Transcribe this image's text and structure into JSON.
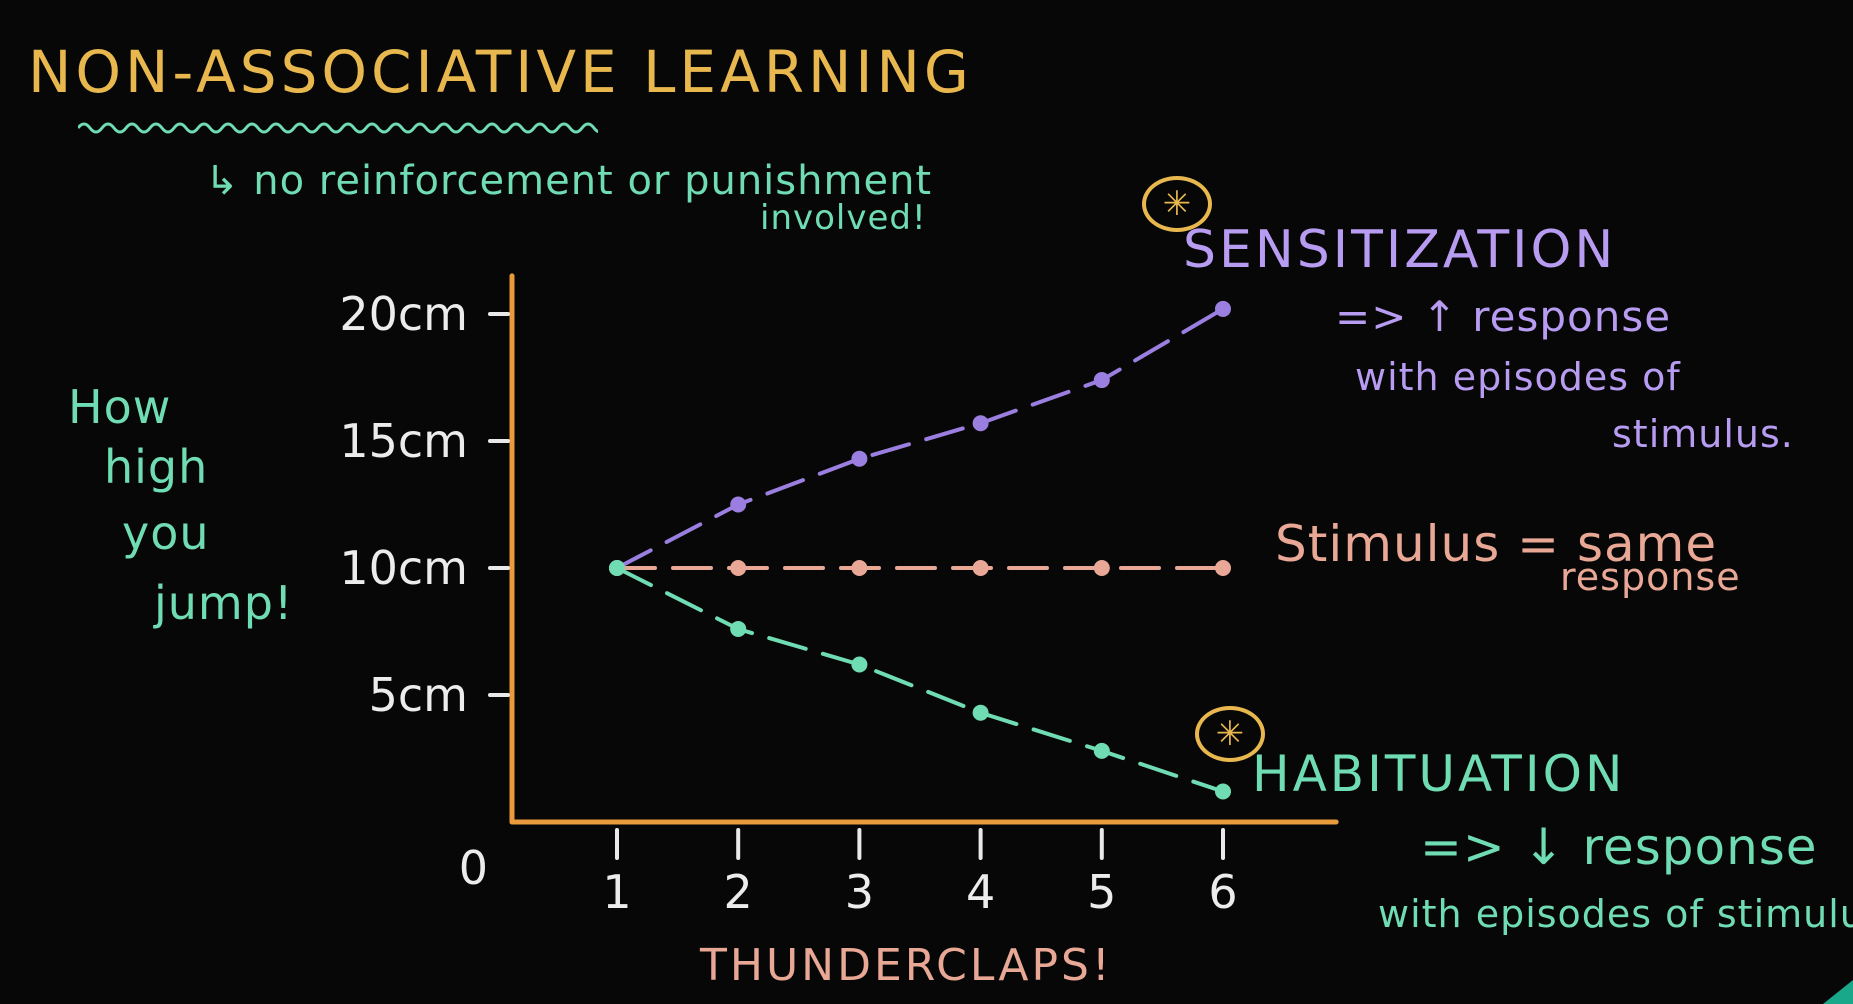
{
  "title": "NON-ASSOCIATIVE LEARNING",
  "subtitle": {
    "line1": "↳ no reinforcement or punishment",
    "line2": "involved!"
  },
  "annotations": {
    "sensitization": {
      "title": "SENSITIZATION",
      "line1": "=> ↑ response",
      "line2": "with episodes of",
      "line3": "stimulus.",
      "badge": "✳"
    },
    "stimulus": {
      "line1": "Stimulus = same",
      "line2": "response"
    },
    "habituation": {
      "title": "HABITUATION",
      "line1": "=> ↓ response",
      "line2": "with episodes of stimulus.",
      "badge": "✳"
    }
  },
  "colors": {
    "axis": "#e89a3c",
    "title": "#e8b84f",
    "sensitization": "#9b7fe0",
    "stimulus": "#e9a895",
    "habituation": "#6fdcb4"
  },
  "chart_data": {
    "type": "line",
    "title": "",
    "xlabel": "THUNDERCLAPS!",
    "ylabel_lines": [
      "How",
      "high",
      "you",
      "jump!"
    ],
    "x": [
      1,
      2,
      3,
      4,
      5,
      6
    ],
    "x_tick_labels": [
      "1",
      "2",
      "3",
      "4",
      "5",
      "6"
    ],
    "origin_label": "0",
    "y_ticks": [
      5,
      10,
      15,
      20
    ],
    "y_tick_labels": [
      "5cm",
      "10cm",
      "15cm",
      "20cm"
    ],
    "xlim": [
      0,
      6.8
    ],
    "ylim": [
      0,
      21.5
    ],
    "grid": false,
    "series": [
      {
        "name": "SENSITIZATION",
        "values": [
          10,
          12.5,
          14.3,
          15.7,
          17.4,
          20.2
        ]
      },
      {
        "name": "Stimulus",
        "values": [
          10,
          10,
          10,
          10,
          10,
          10
        ]
      },
      {
        "name": "HABITUATION",
        "values": [
          10,
          7.6,
          6.2,
          4.3,
          2.8,
          1.2
        ]
      }
    ]
  }
}
